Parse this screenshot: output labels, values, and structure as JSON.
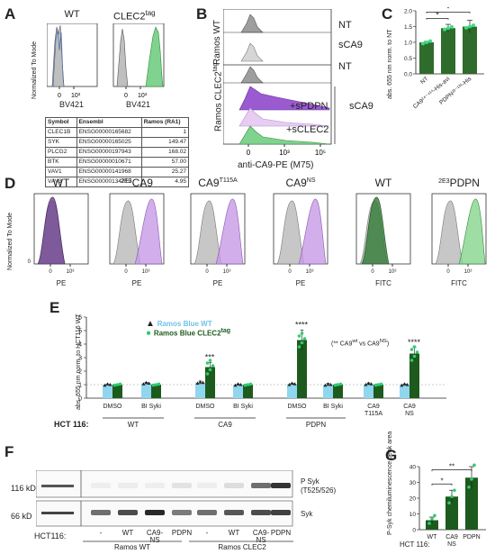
{
  "panels": [
    "A",
    "B",
    "C",
    "D",
    "E",
    "F",
    "G"
  ],
  "A": {
    "hist_titles": [
      "WT",
      "CLEC2"
    ],
    "hist_title_sup": "tag",
    "y_label": "Normalized To Mode",
    "x_label": "BV421",
    "x_ticks": [
      "0",
      "10³"
    ],
    "table": {
      "headers": [
        "Symbol",
        "Ensembl",
        "Ramos (RA1)"
      ],
      "rows": [
        [
          "CLEC1B",
          "ENSG00000165682",
          "1"
        ],
        [
          "SYK",
          "ENSG00000165025",
          "149.47"
        ],
        [
          "PLCG2",
          "ENSG00000197943",
          "168.02"
        ],
        [
          "BTK",
          "ENSG00000010671",
          "57.00"
        ],
        [
          "VAV1",
          "ENSG00000141968",
          "25.27"
        ],
        [
          "VAV3",
          "ENSG00000134215",
          "4.95"
        ]
      ]
    }
  },
  "B": {
    "group_labels": [
      "Ramos WT",
      "Ramos CLEC2"
    ],
    "group_label_sup": "tag",
    "right_labels": [
      "NT",
      "sCA9",
      "NT",
      "sCA9"
    ],
    "inset_labels": [
      "+sPDPN",
      "+sCLEC2"
    ],
    "x_ticks": [
      "0",
      "10³",
      "10⁵"
    ],
    "x_label": "anti-CA9-PE (M75)"
  },
  "C": {
    "y_label": "abs. 655 nm norm. to NT",
    "y_ticks": [
      "0.0",
      "0.5",
      "1.0",
      "1.5",
      "2.0"
    ],
    "categories": [
      "NT",
      "CA9²⁴⁻⁴¹⁴-His-avi",
      "PDPN²³⁻¹³¹-His"
    ],
    "sig": [
      "*",
      "*"
    ]
  },
  "D": {
    "titles": [
      "WT",
      "CA9",
      "CA9",
      "CA9",
      "WT",
      "PDPN"
    ],
    "title_prefix": [
      "",
      "2E3",
      "",
      "",
      "",
      "2E3"
    ],
    "title_sup": [
      "",
      "",
      "T115A",
      "NS",
      "",
      ""
    ],
    "y_label": "Normalized To Mode",
    "x_labels": [
      "PE",
      "PE",
      "PE",
      "PE",
      "FITC",
      "FITC"
    ],
    "x_ticks": [
      "0",
      "10³"
    ]
  },
  "E": {
    "y_label": "abs. 655 nm norm. to HCT116 WT",
    "y_ticks": [
      "0",
      "1",
      "2",
      "3",
      "4",
      "5",
      "6"
    ],
    "legend": [
      "Ramos Blue WT",
      "Ramos Blue CLEC2"
    ],
    "legend_sup": "tag",
    "note": "(** CA9",
    "note_sup1": "wt",
    "note_mid": " vs CA9",
    "note_sup2": "NS",
    "note_end": ")",
    "row_label": "HCT 116:",
    "treatments": [
      "DMSO",
      "BI Syki",
      "DMSO",
      "BI Syki",
      "DMSO",
      "BI Syki",
      "CA9",
      "CA9"
    ],
    "treatments_sub": [
      "",
      "",
      "",
      "",
      "",
      "",
      "T115A",
      "NS"
    ],
    "groups": [
      "WT",
      "CA9",
      "PDPN"
    ],
    "sig": [
      "***",
      "****",
      "****"
    ]
  },
  "F": {
    "ladder": "ladder",
    "kd": [
      "116 kD",
      "66 kD"
    ],
    "right_labels": [
      "P Syk",
      "(T525/526)",
      "Syk"
    ],
    "row_label": "HCT116:",
    "lanes": [
      "-",
      "WT",
      "CA9-\nNS",
      "PDPN",
      "-",
      "WT",
      "CA9-\nNS",
      "PDPN"
    ],
    "groups": [
      "Ramos WT",
      "Ramos CLEC2"
    ]
  },
  "G": {
    "y_label": "P-Syk chemiluminescence peak area",
    "y_ticks": [
      "0",
      "10",
      "20",
      "30",
      "40"
    ],
    "row_label": "HCT 116:",
    "categories": [
      "WT",
      "CA9\nNS",
      "PDPN"
    ],
    "sig": [
      "*",
      "**"
    ]
  },
  "chart_data": [
    {
      "type": "bar",
      "panel": "C",
      "categories": [
        "NT",
        "CA9 24-414-His-avi",
        "PDPN 23-131-His"
      ],
      "values": [
        1.0,
        1.45,
        1.5
      ],
      "errors": [
        0.03,
        0.12,
        0.2
      ],
      "ylabel": "abs. 655 nm norm. to NT",
      "ylim": [
        0,
        2.0
      ],
      "color": "#2f6b2a"
    },
    {
      "type": "bar",
      "panel": "E",
      "categories": [
        "WT DMSO",
        "WT BI Syki",
        "CA9 DMSO",
        "CA9 BI Syki",
        "PDPN DMSO",
        "PDPN BI Syki",
        "CA9 T115A",
        "CA9 NS"
      ],
      "series": [
        {
          "name": "Ramos Blue WT",
          "values": [
            1.0,
            1.1,
            1.15,
            1.0,
            1.05,
            1.0,
            1.05,
            1.0
          ]
        },
        {
          "name": "Ramos Blue CLEC2tag",
          "values": [
            1.0,
            1.0,
            2.3,
            1.0,
            4.3,
            1.0,
            1.0,
            3.3
          ]
        }
      ],
      "ylabel": "abs. 655 nm norm. to HCT116 WT",
      "ylim": [
        0,
        6
      ],
      "colors": [
        "#8fd6ee",
        "#1d5a1d"
      ]
    },
    {
      "type": "bar",
      "panel": "G",
      "categories": [
        "WT",
        "CA9 NS",
        "PDPN"
      ],
      "values": [
        6,
        21,
        33
      ],
      "errors": [
        2,
        4,
        7
      ],
      "ylabel": "P-Syk chemiluminescence peak area",
      "ylim": [
        0,
        40
      ],
      "color": "#1d5a1d"
    }
  ]
}
